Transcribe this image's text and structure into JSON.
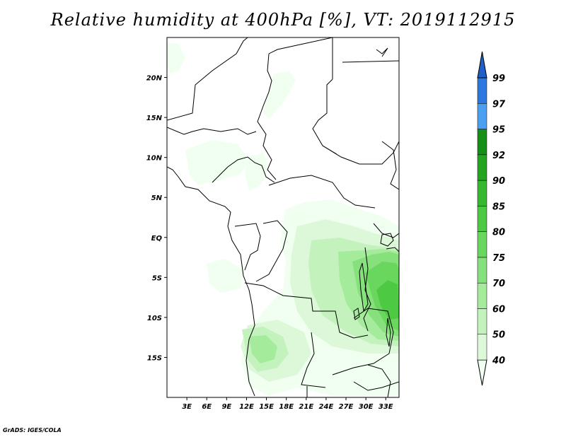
{
  "title": "Relative humidity at 400hPa [%], VT: 2019112915",
  "credit": "GrADS: IGES/COLA",
  "map": {
    "lon_range": [
      0,
      35
    ],
    "lat_range": [
      -20,
      25
    ],
    "lat_ticks": [
      {
        "lat": 20,
        "label": "20N"
      },
      {
        "lat": 15,
        "label": "15N"
      },
      {
        "lat": 10,
        "label": "10N"
      },
      {
        "lat": 5,
        "label": "5N"
      },
      {
        "lat": 0,
        "label": "EQ"
      },
      {
        "lat": -5,
        "label": "5S"
      },
      {
        "lat": -10,
        "label": "10S"
      },
      {
        "lat": -15,
        "label": "15S"
      }
    ],
    "lon_ticks": [
      {
        "lon": 3,
        "label": "3E"
      },
      {
        "lon": 6,
        "label": "6E"
      },
      {
        "lon": 9,
        "label": "9E"
      },
      {
        "lon": 12,
        "label": "12E"
      },
      {
        "lon": 15,
        "label": "15E"
      },
      {
        "lon": 18,
        "label": "18E"
      },
      {
        "lon": 21,
        "label": "21E"
      },
      {
        "lon": 24,
        "label": "24E"
      },
      {
        "lon": 27,
        "label": "27E"
      },
      {
        "lon": 30,
        "label": "30E"
      },
      {
        "lon": 33,
        "label": "33E"
      }
    ]
  },
  "colorbar": {
    "levels": [
      "40",
      "50",
      "60",
      "70",
      "75",
      "80",
      "85",
      "90",
      "92",
      "95",
      "97",
      "99"
    ],
    "colors": [
      "#f0fff0",
      "#dcf8d8",
      "#c3f2bd",
      "#a5eb9c",
      "#86e07b",
      "#69d65e",
      "#4ec944",
      "#37b92f",
      "#23a520",
      "#158f15",
      "#4a9ff0",
      "#2a78e0",
      "#1e5fc8"
    ]
  },
  "colors": {
    "level_40": "#f0fff0",
    "level_50": "#dcf8d8",
    "level_60": "#c3f2bd",
    "level_70": "#a5eb9c",
    "level_75": "#86e07b",
    "level_80": "#69d65e",
    "level_85": "#4ec944"
  }
}
